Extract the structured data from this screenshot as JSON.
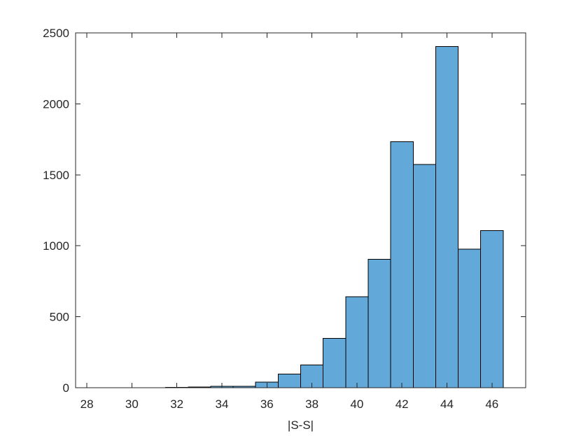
{
  "chart_data": {
    "type": "bar",
    "title": "",
    "xlabel": "|S-S|",
    "ylabel": "",
    "xlim": [
      27.5,
      47.5
    ],
    "ylim": [
      0,
      2500
    ],
    "xticks": [
      28,
      30,
      32,
      34,
      36,
      38,
      40,
      42,
      44,
      46
    ],
    "yticks": [
      0,
      500,
      1000,
      1500,
      2000,
      2500
    ],
    "grid": false,
    "bar_color": "#62a8d8",
    "bar_edge_color": "#000000",
    "bins": [
      {
        "x0": 28.5,
        "x1": 29.5,
        "value": 1
      },
      {
        "x0": 29.5,
        "x1": 30.5,
        "value": 1
      },
      {
        "x0": 30.5,
        "x1": 31.5,
        "value": 0
      },
      {
        "x0": 31.5,
        "x1": 32.5,
        "value": 2
      },
      {
        "x0": 32.5,
        "x1": 33.5,
        "value": 4
      },
      {
        "x0": 33.5,
        "x1": 34.5,
        "value": 10
      },
      {
        "x0": 34.5,
        "x1": 35.5,
        "value": 11
      },
      {
        "x0": 35.5,
        "x1": 36.5,
        "value": 40
      },
      {
        "x0": 36.5,
        "x1": 37.5,
        "value": 97
      },
      {
        "x0": 37.5,
        "x1": 38.5,
        "value": 160
      },
      {
        "x0": 38.5,
        "x1": 39.5,
        "value": 347
      },
      {
        "x0": 39.5,
        "x1": 40.5,
        "value": 641
      },
      {
        "x0": 40.5,
        "x1": 41.5,
        "value": 906
      },
      {
        "x0": 41.5,
        "x1": 42.5,
        "value": 1733
      },
      {
        "x0": 42.5,
        "x1": 43.5,
        "value": 1572
      },
      {
        "x0": 43.5,
        "x1": 44.5,
        "value": 2405
      },
      {
        "x0": 44.5,
        "x1": 45.5,
        "value": 976
      },
      {
        "x0": 45.5,
        "x1": 46.5,
        "value": 1108
      }
    ]
  }
}
